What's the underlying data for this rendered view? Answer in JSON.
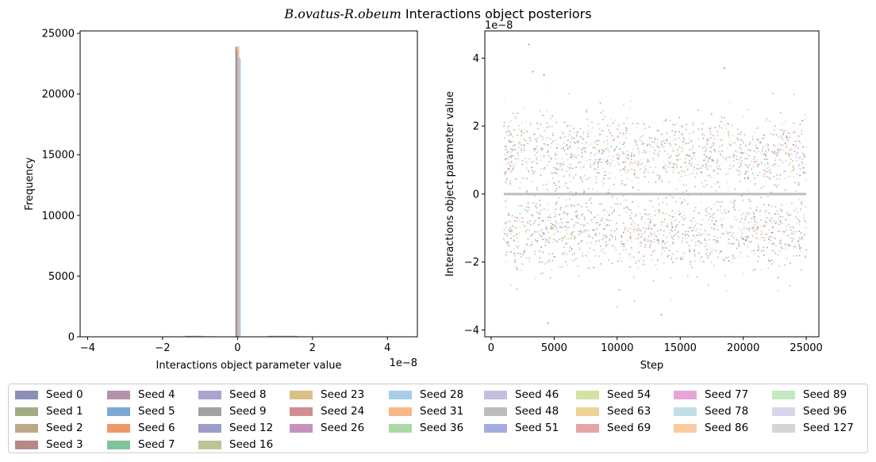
{
  "figure": {
    "title_italic": "B.ovatus-R.obeum",
    "title_rest": " Interactions object posteriors"
  },
  "chart_data": [
    {
      "type": "bar",
      "subtype": "histogram",
      "xlabel": "Interactions object parameter value",
      "ylabel": "Frequency",
      "x_offset_label": "1e−8",
      "xlim": [
        -4.2,
        4.8
      ],
      "ylim": [
        0,
        25200
      ],
      "x_ticks": [
        -4,
        -2,
        0,
        2,
        4
      ],
      "x_tick_labels": [
        "−4",
        "−2",
        "0",
        "2",
        "4"
      ],
      "y_ticks": [
        0,
        5000,
        10000,
        15000,
        20000,
        25000
      ],
      "y_tick_labels": [
        "0",
        "5000",
        "10000",
        "15000",
        "20000",
        "25000"
      ],
      "bars": [
        {
          "seed": "Seed 0",
          "x0": -0.06,
          "x1": -0.01,
          "value": 23900
        },
        {
          "seed": "Seed 3",
          "x0": -0.05,
          "x1": 0.0,
          "value": 23700
        },
        {
          "seed": "Seed 5",
          "x0": -0.03,
          "x1": 0.02,
          "value": 23500
        },
        {
          "seed": "Seed 31",
          "x0": 0.0,
          "x1": 0.05,
          "value": 23950
        },
        {
          "seed": "Seed 69",
          "x0": 0.02,
          "x1": 0.07,
          "value": 23000
        },
        {
          "seed": "Seed 28",
          "x0": 0.04,
          "x1": 0.09,
          "value": 22900
        },
        {
          "seed": "Seed 24",
          "x0": -1.4,
          "x1": -0.9,
          "value": 80
        },
        {
          "seed": "Seed 63",
          "x0": -1.0,
          "x1": -0.6,
          "value": 60
        },
        {
          "seed": "Seed 24",
          "x0": 0.8,
          "x1": 1.6,
          "value": 80
        },
        {
          "seed": "Seed 63",
          "x0": 1.6,
          "x1": 2.0,
          "value": 40
        }
      ]
    },
    {
      "type": "scatter",
      "xlabel": "Step",
      "ylabel": "Interactions object parameter value",
      "y_offset_label": "1e−8",
      "xlim": [
        -500,
        26000
      ],
      "ylim": [
        -4.2,
        4.8
      ],
      "x_ticks": [
        0,
        5000,
        10000,
        15000,
        20000,
        25000
      ],
      "x_tick_labels": [
        "0",
        "5000",
        "10000",
        "15000",
        "20000",
        "25000"
      ],
      "y_ticks": [
        -4,
        -2,
        0,
        2,
        4
      ],
      "y_tick_labels": [
        "−4",
        "−2",
        "0",
        "2",
        "4"
      ],
      "step_range": [
        1000,
        25000
      ],
      "upper_band": {
        "center": 1.2,
        "spread": 0.9,
        "extreme_max": 4.4
      },
      "lower_band": {
        "center": -1.1,
        "spread": 0.9,
        "extreme_min": -3.8
      },
      "zero_line": 0
    }
  ],
  "legend": {
    "columns": [
      [
        {
          "label": "Seed 0",
          "color": "#8b8fb5"
        },
        {
          "label": "Seed 1",
          "color": "#a1ac87"
        },
        {
          "label": "Seed 2",
          "color": "#bcaa86"
        },
        {
          "label": "Seed 3",
          "color": "#b68886"
        }
      ],
      [
        {
          "label": "Seed 4",
          "color": "#b491ad"
        },
        {
          "label": "Seed 5",
          "color": "#7ba9d4"
        },
        {
          "label": "Seed 6",
          "color": "#f0976a"
        },
        {
          "label": "Seed 7",
          "color": "#80c49a"
        }
      ],
      [
        {
          "label": "Seed 8",
          "color": "#a9a3d1"
        },
        {
          "label": "Seed 9",
          "color": "#a2a2a2"
        },
        {
          "label": "Seed 12",
          "color": "#9d9dc8"
        },
        {
          "label": "Seed 16",
          "color": "#b9c597"
        }
      ],
      [
        {
          "label": "Seed 23",
          "color": "#d9c084"
        },
        {
          "label": "Seed 24",
          "color": "#cd8f8f"
        },
        {
          "label": "Seed 26",
          "color": "#c791bd"
        }
      ],
      [
        {
          "label": "Seed 28",
          "color": "#a6cde6"
        },
        {
          "label": "Seed 31",
          "color": "#f9b887"
        },
        {
          "label": "Seed 36",
          "color": "#aad9a6"
        }
      ],
      [
        {
          "label": "Seed 46",
          "color": "#c3bfdf"
        },
        {
          "label": "Seed 48",
          "color": "#bdbdbd"
        },
        {
          "label": "Seed 51",
          "color": "#a4ace0"
        }
      ],
      [
        {
          "label": "Seed 54",
          "color": "#d3e1a2"
        },
        {
          "label": "Seed 63",
          "color": "#edd394"
        },
        {
          "label": "Seed 69",
          "color": "#e6a4a6"
        }
      ],
      [
        {
          "label": "Seed 77",
          "color": "#e5a5d9"
        },
        {
          "label": "Seed 78",
          "color": "#c0dfe9"
        },
        {
          "label": "Seed 86",
          "color": "#fccaa0"
        }
      ],
      [
        {
          "label": "Seed 89",
          "color": "#c5e8c3"
        },
        {
          "label": "Seed 96",
          "color": "#d8d6eb"
        },
        {
          "label": "Seed 127",
          "color": "#d5d5d5"
        }
      ]
    ]
  }
}
